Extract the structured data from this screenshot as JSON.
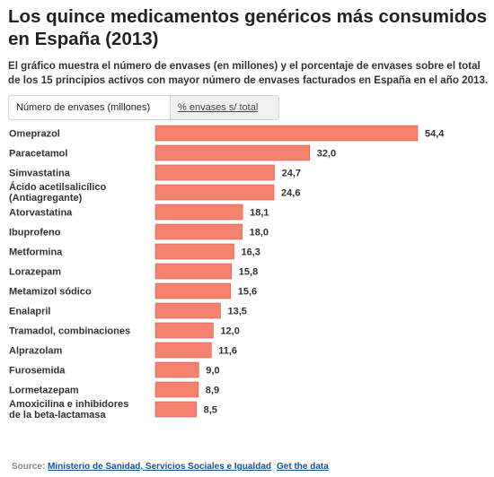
{
  "header": {
    "title": "Los quince medicamentos genéricos más consumidos en España (2013)",
    "subtitle": "El gráfico muestra el número de envases (en millones) y el porcentaje de envases sobre el total de los 15 principios activos con mayor número de envases facturados en España en el año 2013."
  },
  "tabs": [
    {
      "label": "Número de envases (millones)",
      "active": true
    },
    {
      "label": "% envases s/ total",
      "active": false
    }
  ],
  "chart_data": {
    "type": "bar",
    "orientation": "horizontal",
    "title": "Los quince medicamentos genéricos más consumidos en España (2013)",
    "xlabel": "",
    "ylabel": "",
    "xlim": [
      0,
      54.4
    ],
    "grid": false,
    "bar_color": "#f4826f",
    "categories": [
      [
        "Omeprazol"
      ],
      [
        "Paracetamol"
      ],
      [
        "Simvastatina"
      ],
      [
        "Ácido acetilsalicílico",
        "(Antiagregante)"
      ],
      [
        "Atorvastatina"
      ],
      [
        "Ibuprofeno"
      ],
      [
        "Metformina"
      ],
      [
        "Lorazepam"
      ],
      [
        "Metamizol sódico"
      ],
      [
        "Enalapril"
      ],
      [
        "Tramadol, combinaciones"
      ],
      [
        "Alprazolam"
      ],
      [
        "Furosemida"
      ],
      [
        "Lormetazepam"
      ],
      [
        "Amoxicilina e inhibidores",
        "de la beta-lactamasa"
      ]
    ],
    "values": [
      54.4,
      32.0,
      24.7,
      24.6,
      18.1,
      18.0,
      16.3,
      15.8,
      15.6,
      13.5,
      12.0,
      11.6,
      9.0,
      8.9,
      8.5
    ],
    "value_labels": [
      "54,4",
      "32,0",
      "24,7",
      "24,6",
      "18,1",
      "18,0",
      "16,3",
      "15,8",
      "15,6",
      "13,5",
      "12,0",
      "11,6",
      "9,0",
      "8,9",
      "8,5"
    ]
  },
  "footer": {
    "source_label": "Source:",
    "source_link": "Ministerio de Sanidad, Servicios Sociales e Igualdad",
    "data_link": "Get the data"
  }
}
